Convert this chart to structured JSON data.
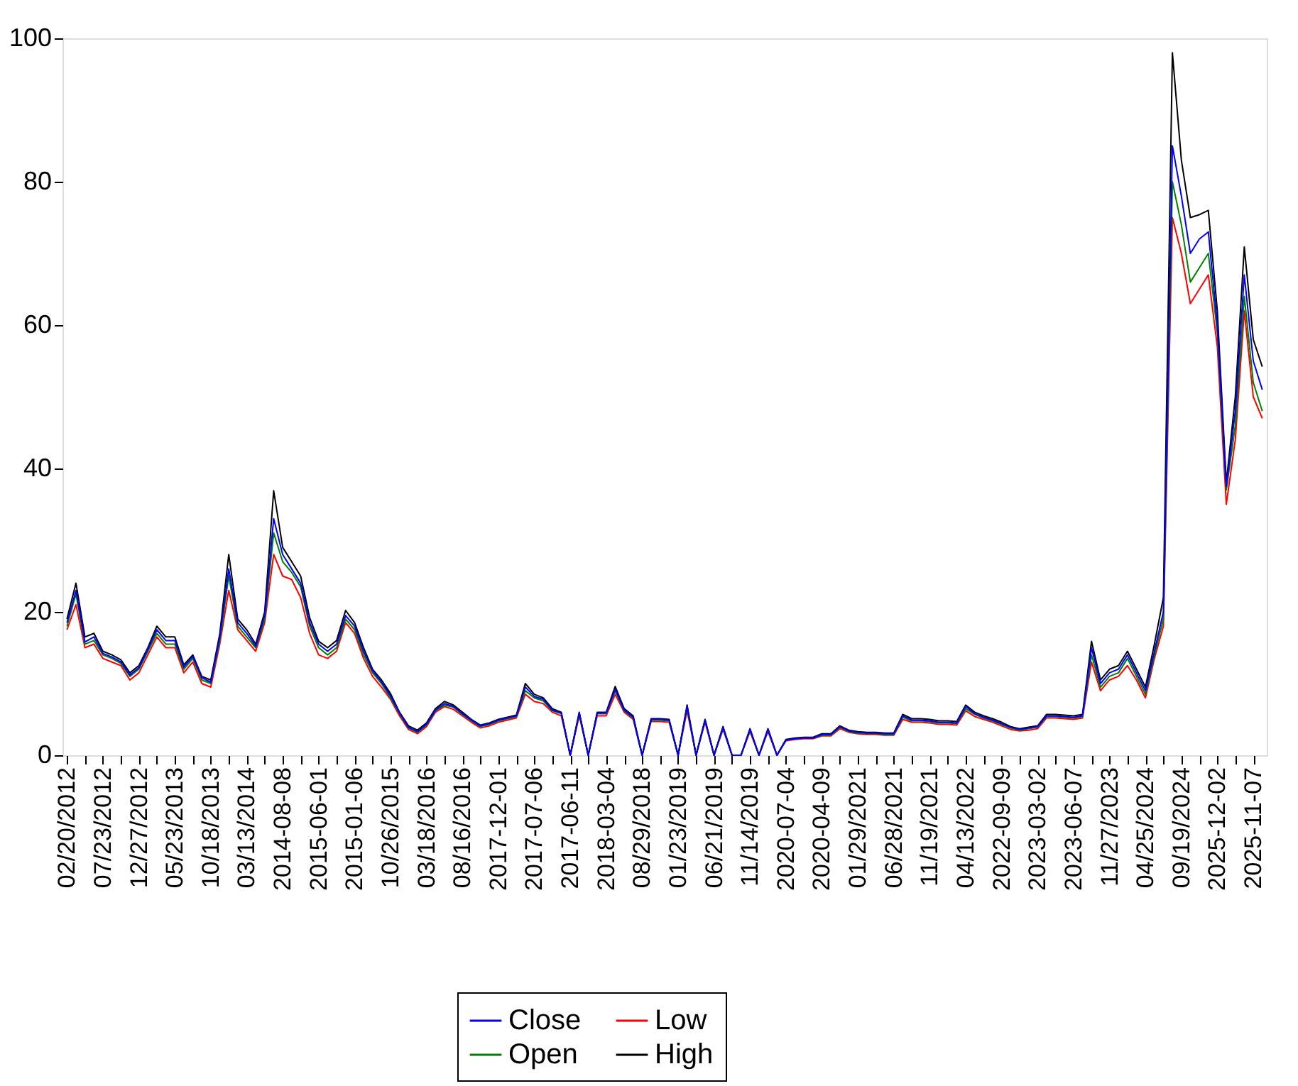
{
  "chart_data": {
    "type": "line",
    "legend": "bottom",
    "grid": false,
    "categories": [
      "02/20/2012",
      null,
      null,
      null,
      "07/23/2012",
      null,
      null,
      null,
      "12/27/2012",
      null,
      null,
      null,
      "05/23/2013",
      null,
      null,
      null,
      "10/18/2013",
      null,
      null,
      null,
      "03/13/2014",
      null,
      null,
      null,
      "2014-08-08",
      null,
      null,
      null,
      "2015-06-01",
      null,
      null,
      null,
      "2015-01-06",
      null,
      null,
      null,
      "10/26/2015",
      null,
      null,
      null,
      "03/18/2016",
      null,
      null,
      null,
      "08/16/2016",
      null,
      null,
      null,
      "2017-12-01",
      null,
      null,
      null,
      "2017-07-06",
      null,
      null,
      null,
      "2017-06-11",
      null,
      null,
      null,
      "2018-03-04",
      null,
      null,
      null,
      "08/29/2018",
      null,
      null,
      null,
      "01/23/2019",
      null,
      null,
      null,
      "06/21/2019",
      null,
      null,
      null,
      "11/14/2019",
      null,
      null,
      null,
      "2020-07-04",
      null,
      null,
      null,
      "2020-04-09",
      null,
      null,
      null,
      "01/29/2021",
      null,
      null,
      null,
      "06/28/2021",
      null,
      null,
      null,
      "11/19/2021",
      null,
      null,
      null,
      "04/13/2022",
      null,
      null,
      null,
      "2022-09-09",
      null,
      null,
      null,
      "2023-03-02",
      null,
      null,
      null,
      "2023-06-07",
      null,
      null,
      null,
      "11/27/2023",
      null,
      null,
      null,
      "04/25/2024",
      null,
      null,
      null,
      "09/19/2024",
      null,
      null,
      null,
      "2025-12-02",
      null,
      null,
      null,
      "2025-11-07",
      null
    ],
    "ylim": [
      0,
      100
    ],
    "yticks": [
      0,
      20,
      40,
      60,
      80,
      100
    ],
    "series": [
      {
        "name": "Close",
        "color": "#0000ff",
        "values": [
          18.5,
          23,
          15.8,
          16.5,
          14.2,
          13.7,
          13,
          11.2,
          12.2,
          14.8,
          17.5,
          16,
          16,
          12.3,
          13.8,
          10.8,
          10.2,
          16.5,
          26,
          18.5,
          17,
          15.2,
          19.5,
          33,
          28,
          26,
          24,
          18.5,
          15.5,
          14.5,
          15.5,
          19.5,
          18,
          14.5,
          11.8,
          10.2,
          8.3,
          5.9,
          3.9,
          3.3,
          4.3,
          6.3,
          7.2,
          6.8,
          5.8,
          4.9,
          4.1,
          4.4,
          4.9,
          5.2,
          5.5,
          9.5,
          8.2,
          7.8,
          6.3,
          5.9,
          0,
          5.9,
          0,
          5.9,
          5.9,
          9.2,
          6.3,
          5.3,
          0,
          5,
          5,
          4.9,
          0,
          6.8,
          0,
          4.9,
          0,
          3.9,
          0,
          0,
          3.6,
          0,
          3.6,
          0,
          2.1,
          2.3,
          2.4,
          2.4,
          2.9,
          2.9,
          4,
          3.4,
          3.2,
          3.1,
          3.1,
          3,
          3,
          5.5,
          4.9,
          4.9,
          4.8,
          4.6,
          4.6,
          4.5,
          6.8,
          5.8,
          5.3,
          4.9,
          4.4,
          3.9,
          3.6,
          3.8,
          4,
          5.5,
          5.5,
          5.4,
          5.3,
          5.5,
          15,
          10,
          11.5,
          12,
          14,
          11.5,
          9,
          14.5,
          20,
          85,
          78,
          70,
          72,
          73,
          60,
          37.5,
          48,
          67,
          55,
          51
        ]
      },
      {
        "name": "Low",
        "color": "#ff0000",
        "values": [
          17.5,
          21,
          15,
          15.5,
          13.5,
          13,
          12.5,
          10.5,
          11.5,
          14,
          16.5,
          15,
          15,
          11.5,
          13,
          10,
          9.5,
          15.5,
          23,
          17.5,
          16,
          14.5,
          18.5,
          28,
          25,
          24.5,
          22,
          17,
          14,
          13.5,
          14.5,
          18.5,
          17,
          13.5,
          11,
          9.5,
          7.8,
          5.5,
          3.6,
          3,
          4,
          6,
          6.8,
          6.4,
          5.5,
          4.6,
          3.8,
          4.1,
          4.6,
          4.9,
          5.2,
          8.5,
          7.5,
          7.2,
          6,
          5.5,
          0,
          5.5,
          0,
          5.5,
          5.5,
          8.5,
          6,
          5,
          0,
          4.7,
          4.7,
          4.6,
          0,
          6.2,
          0,
          4.6,
          0,
          3.6,
          0,
          0,
          3.3,
          0,
          3.3,
          0,
          2,
          2.2,
          2.3,
          2.3,
          2.7,
          2.7,
          3.7,
          3.2,
          3,
          2.9,
          2.9,
          2.8,
          2.8,
          5,
          4.6,
          4.6,
          4.5,
          4.3,
          4.3,
          4.2,
          6.2,
          5.4,
          5,
          4.6,
          4.1,
          3.6,
          3.4,
          3.5,
          3.7,
          5.2,
          5.2,
          5.1,
          5,
          5.2,
          13,
          9,
          10.5,
          11,
          12.5,
          10.5,
          8,
          13.5,
          18,
          75,
          70,
          63,
          65,
          67,
          57,
          35,
          44,
          62,
          50,
          47
        ]
      },
      {
        "name": "Open",
        "color": "#008000",
        "values": [
          18,
          22.5,
          15.5,
          16,
          14,
          13.5,
          12.8,
          11,
          12,
          14.5,
          17,
          15.5,
          15.5,
          12,
          13.5,
          10.5,
          10,
          16,
          25,
          18,
          16.5,
          15,
          19,
          31,
          27,
          25.5,
          23.5,
          18,
          15,
          14,
          15,
          19,
          17.5,
          14,
          11.5,
          10,
          8,
          5.8,
          3.8,
          3.2,
          4.2,
          6.2,
          7,
          6.7,
          5.7,
          4.8,
          4,
          4.3,
          4.8,
          5.1,
          5.4,
          9,
          8,
          7.6,
          6.2,
          5.8,
          0,
          5.8,
          0,
          5.8,
          5.8,
          9,
          6.2,
          5.2,
          0,
          4.9,
          4.9,
          4.8,
          0,
          6.6,
          0,
          4.8,
          0,
          3.8,
          0,
          0,
          3.5,
          0,
          3.5,
          0,
          2.1,
          2.3,
          2.4,
          2.4,
          2.8,
          2.8,
          3.9,
          3.3,
          3.1,
          3,
          3,
          2.9,
          2.9,
          5.3,
          4.8,
          4.8,
          4.7,
          4.5,
          4.5,
          4.4,
          6.5,
          5.7,
          5.2,
          4.8,
          4.3,
          3.8,
          3.5,
          3.7,
          3.9,
          5.4,
          5.4,
          5.3,
          5.2,
          5.4,
          14,
          9.5,
          11,
          11.5,
          13.5,
          11,
          8.5,
          14,
          19,
          80,
          74,
          66,
          68,
          70,
          59,
          37,
          46,
          64,
          52,
          48
        ]
      },
      {
        "name": "High",
        "color": "#000000",
        "values": [
          19,
          24,
          16.5,
          17,
          14.5,
          14,
          13.3,
          11.5,
          12.5,
          15,
          18,
          16.5,
          16.5,
          12.6,
          14,
          11,
          10.5,
          16.9,
          28,
          19,
          17.5,
          15.5,
          20,
          36.9,
          29,
          27,
          25,
          19.2,
          15.9,
          15,
          16,
          20.2,
          18.5,
          15,
          12,
          10.5,
          8.6,
          6,
          4.1,
          3.5,
          4.5,
          6.5,
          7.5,
          7,
          6,
          5,
          4.2,
          4.5,
          5,
          5.3,
          5.6,
          10,
          8.5,
          8,
          6.5,
          6,
          0,
          6,
          0,
          6,
          6,
          9.6,
          6.5,
          5.5,
          0,
          5.1,
          5.1,
          5,
          0,
          7,
          0,
          5,
          0,
          4,
          0,
          0,
          3.7,
          0,
          3.7,
          0,
          2.2,
          2.4,
          2.5,
          2.5,
          3,
          3,
          4.1,
          3.5,
          3.3,
          3.2,
          3.2,
          3.1,
          3.1,
          5.7,
          5.1,
          5.1,
          5,
          4.8,
          4.8,
          4.7,
          7,
          6,
          5.5,
          5.1,
          4.6,
          4,
          3.7,
          3.9,
          4.1,
          5.7,
          5.7,
          5.6,
          5.5,
          5.7,
          15.9,
          10.5,
          12,
          12.5,
          14.5,
          12,
          9.5,
          15.5,
          22,
          98,
          83,
          75,
          75.4,
          76,
          62,
          38,
          50,
          70.9,
          58,
          54.2
        ]
      }
    ]
  }
}
